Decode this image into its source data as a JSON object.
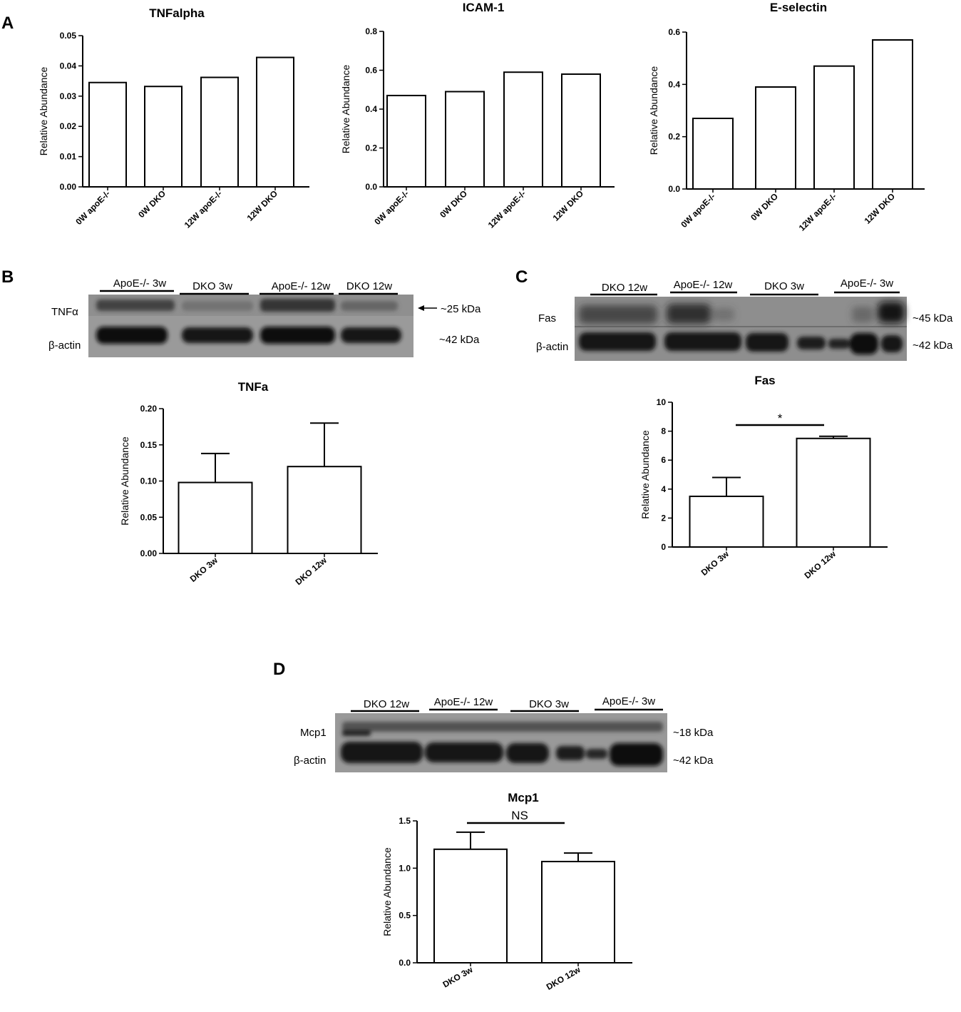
{
  "panels": {
    "A": "A",
    "B": "B",
    "C": "C",
    "D": "D"
  },
  "chart_data": [
    {
      "id": "tnfalpha",
      "type": "bar",
      "title": "TNFalpha",
      "ylabel": "Relative Abundance",
      "categories": [
        "0W apoE-/-",
        "0W DKO",
        "12W apoE-/-",
        "12W DKO"
      ],
      "values": [
        0.0345,
        0.0332,
        0.0362,
        0.0428
      ],
      "ylim": [
        0,
        0.05
      ],
      "yticks": [
        "0.00",
        "0.01",
        "0.02",
        "0.03",
        "0.04",
        "0.05"
      ]
    },
    {
      "id": "icam1",
      "type": "bar",
      "title": "ICAM-1",
      "ylabel": "Relative Abundance",
      "categories": [
        "0W apoE-/-",
        "0W DKO",
        "12W apoE-/-",
        "12W DKO"
      ],
      "values": [
        0.47,
        0.49,
        0.59,
        0.58
      ],
      "ylim": [
        0,
        0.8
      ],
      "yticks": [
        "0.0",
        "0.2",
        "0.4",
        "0.6",
        "0.8"
      ]
    },
    {
      "id": "eselectin",
      "type": "bar",
      "title": "E-selectin",
      "ylabel": "Relative Abundance",
      "categories": [
        "0W apoE-/-",
        "0W DKO",
        "12W apoE-/-",
        "12W DKO"
      ],
      "values": [
        0.27,
        0.39,
        0.47,
        0.57
      ],
      "ylim": [
        0,
        0.6
      ],
      "yticks": [
        "0.0",
        "0.2",
        "0.4",
        "0.6"
      ]
    },
    {
      "id": "tnfa",
      "type": "bar",
      "title": "TNFa",
      "ylabel": "Relative Abundance",
      "categories": [
        "DKO 3w",
        "DKO 12w"
      ],
      "values": [
        0.098,
        0.12
      ],
      "errors": [
        0.04,
        0.06
      ],
      "ylim": [
        0,
        0.2
      ],
      "yticks": [
        "0.00",
        "0.05",
        "0.10",
        "0.15",
        "0.20"
      ]
    },
    {
      "id": "fas",
      "type": "bar",
      "title": "Fas",
      "ylabel": "Relative Abundance",
      "categories": [
        "DKO 3w",
        "DKO 12w"
      ],
      "values": [
        3.5,
        7.5
      ],
      "errors": [
        1.3,
        0.15
      ],
      "ylim": [
        0,
        10
      ],
      "yticks": [
        "0",
        "2",
        "4",
        "6",
        "8",
        "10"
      ],
      "annotation": "*"
    },
    {
      "id": "mcp1",
      "type": "bar",
      "title": "Mcp1",
      "ylabel": "Relative Abundance",
      "categories": [
        "DKO 3w",
        "DKO 12w"
      ],
      "values": [
        1.2,
        1.07
      ],
      "errors": [
        0.18,
        0.09
      ],
      "ylim": [
        0,
        1.5
      ],
      "yticks": [
        "0.0",
        "0.5",
        "1.0",
        "1.5"
      ],
      "annotation": "NS"
    }
  ],
  "blots": {
    "B": {
      "groups": [
        "ApoE-/- 3w",
        "DKO 3w",
        "ApoE-/- 12w",
        "DKO 12w"
      ],
      "rows": [
        "TNFα",
        "β-actin"
      ],
      "sizes": [
        "~25 kDa",
        "~42 kDa"
      ]
    },
    "C": {
      "groups": [
        "DKO 12w",
        "ApoE-/- 12w",
        "DKO 3w",
        "ApoE-/- 3w"
      ],
      "rows": [
        "Fas",
        "β-actin"
      ],
      "sizes": [
        "~45 kDa",
        "~42 kDa"
      ]
    },
    "D": {
      "groups": [
        "DKO 12w",
        "ApoE-/- 12w",
        "DKO 3w",
        "ApoE-/- 3w"
      ],
      "rows": [
        "Mcp1",
        "β-actin"
      ],
      "sizes": [
        "~18 kDa",
        "~42 kDa"
      ]
    }
  }
}
